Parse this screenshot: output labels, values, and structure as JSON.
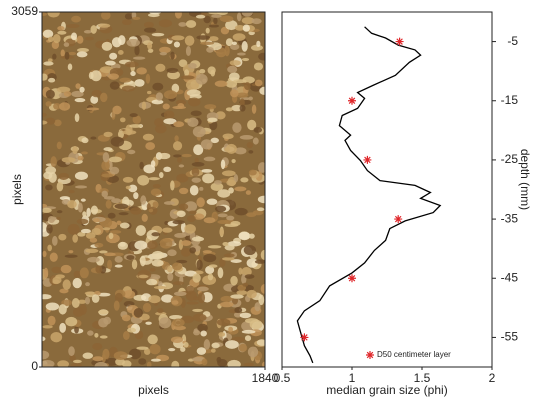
{
  "chart_data": [
    {
      "type": "image",
      "ylabel": "pixels",
      "xlabel": "pixels",
      "xlim": [
        0,
        1840
      ],
      "xticks": [
        1840
      ],
      "ylim": [
        0,
        3059
      ],
      "yticks": [
        0,
        3059
      ]
    },
    {
      "type": "line",
      "xlabel": "median grain size (phi)",
      "ylabel": "depth (mm)",
      "xlim": [
        0.5,
        2
      ],
      "xticks": [
        0.5,
        1,
        1.5,
        2
      ],
      "ylim": [
        -60,
        0
      ],
      "yticks": [
        -55,
        -45,
        -35,
        -25,
        -15,
        -5
      ],
      "legend": "lower right",
      "series": [
        {
          "type": "line",
          "color": "#000000",
          "x": [
            1.09,
            1.14,
            1.24,
            1.33,
            1.45,
            1.49,
            1.41,
            1.31,
            1.15,
            1.04,
            1.09,
            1.04,
            0.93,
            0.91,
            0.99,
            0.95,
            0.99,
            1.06,
            1.11,
            1.2,
            1.45,
            1.56,
            1.49,
            1.63,
            1.58,
            1.38,
            1.27,
            1.24,
            1.16,
            1.09,
            1.0,
            0.84,
            0.77,
            0.66,
            0.61,
            0.63,
            0.66,
            0.7,
            0.72
          ],
          "y": [
            -2.5,
            -3.6,
            -4.4,
            -5.6,
            -6.4,
            -7.3,
            -8.5,
            -10.7,
            -12.4,
            -13.6,
            -14.6,
            -16.3,
            -17.5,
            -19.2,
            -20.8,
            -21.7,
            -23.4,
            -25.1,
            -26.8,
            -28.5,
            -29.3,
            -30.5,
            -31.5,
            -32.7,
            -33.9,
            -35.3,
            -36.6,
            -38.6,
            -40.3,
            -42.4,
            -44.1,
            -46.3,
            -48.8,
            -50.5,
            -52.2,
            -53.9,
            -56.4,
            -58.1,
            -59.3
          ]
        },
        {
          "type": "scatter",
          "name": "D50 centimeter layer",
          "color": "#e0262a",
          "x": [
            1.34,
            1.0,
            1.11,
            1.33,
            1.0,
            0.66
          ],
          "y": [
            -5,
            -15,
            -25,
            -35,
            -45,
            -55
          ]
        }
      ]
    }
  ]
}
